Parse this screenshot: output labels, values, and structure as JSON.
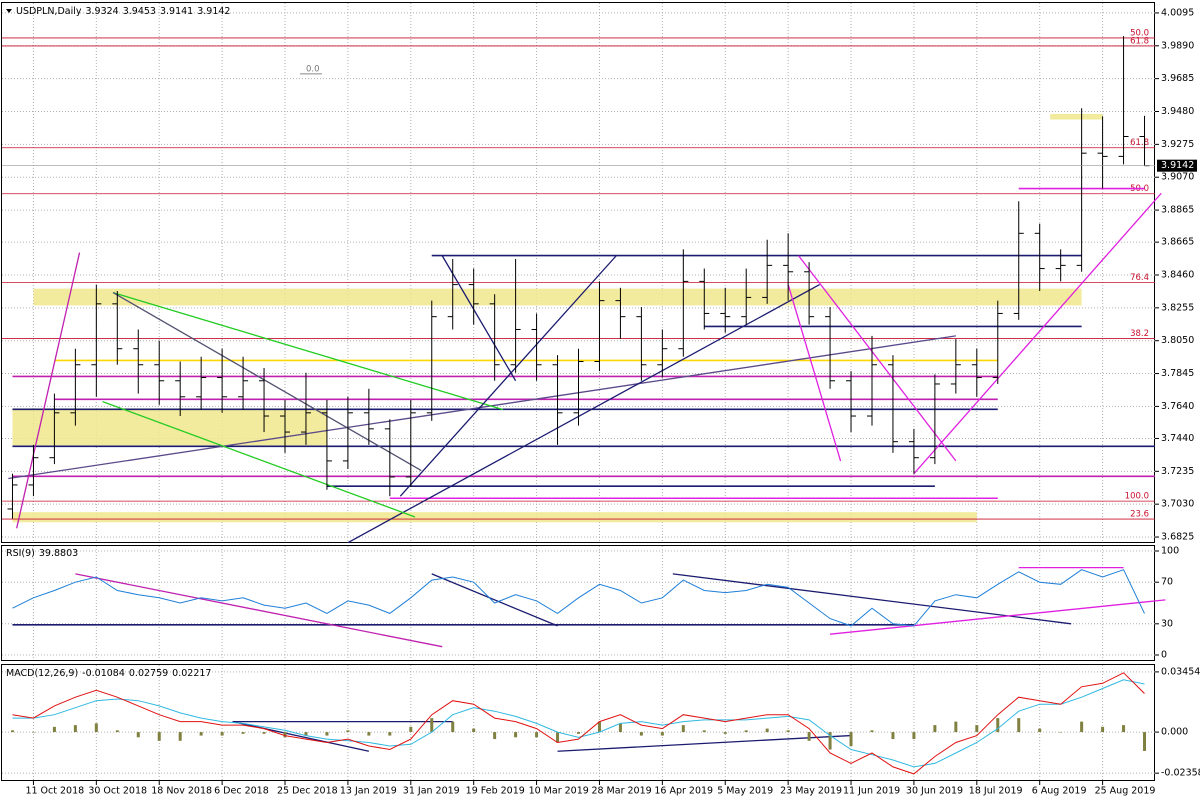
{
  "chart_data": [
    {
      "type": "ohlc",
      "title": "USDPLN,Daily",
      "color": "#000000",
      "grid": true,
      "categories": [
        null,
        "11 Oct 2018",
        null,
        null,
        "30 Oct 2018",
        null,
        null,
        "18 Nov 2018",
        null,
        null,
        "6 Dec 2018",
        null,
        null,
        "25 Dec 2018",
        null,
        null,
        "13 Jan 2019",
        null,
        null,
        "31 Jan 2019",
        null,
        null,
        "19 Feb 2019",
        null,
        null,
        "10 Mar 2019",
        null,
        null,
        "28 Mar 2019",
        null,
        null,
        "16 Apr 2019",
        null,
        null,
        "5 May 2019",
        null,
        null,
        "23 May 2019",
        null,
        null,
        "11 Jun 2019",
        null,
        null,
        "30 Jun 2019",
        null,
        null,
        "18 Jul 2019",
        null,
        null,
        "6 Aug 2019",
        null,
        null,
        "25 Aug 2019",
        null,
        null
      ],
      "open": [
        3.7,
        3.715,
        3.732,
        3.76,
        3.79,
        3.828,
        3.8,
        3.79,
        3.78,
        3.77,
        3.782,
        3.77,
        3.78,
        3.758,
        3.748,
        3.76,
        3.73,
        3.76,
        3.75,
        3.72,
        3.76,
        3.82,
        3.84,
        3.828,
        3.79,
        3.812,
        3.79,
        3.76,
        3.792,
        3.83,
        3.82,
        3.79,
        3.8,
        3.842,
        3.822,
        3.82,
        3.832,
        3.852,
        3.848,
        3.82,
        3.78,
        3.758,
        3.79,
        3.742,
        3.732,
        3.778,
        3.79,
        3.782,
        3.822,
        3.872,
        3.85,
        3.852,
        3.922,
        3.92,
        3.9324
      ],
      "high": [
        3.722,
        3.74,
        3.772,
        3.8,
        3.84,
        3.836,
        3.812,
        3.805,
        3.792,
        3.795,
        3.8,
        3.795,
        3.788,
        3.768,
        3.785,
        3.768,
        3.77,
        3.775,
        3.756,
        3.768,
        3.83,
        3.856,
        3.85,
        3.834,
        3.856,
        3.822,
        3.796,
        3.8,
        3.842,
        3.838,
        3.826,
        3.812,
        3.862,
        3.85,
        3.838,
        3.85,
        3.868,
        3.872,
        3.854,
        3.826,
        3.786,
        3.808,
        3.796,
        3.75,
        3.784,
        3.806,
        3.8,
        3.83,
        3.892,
        3.878,
        3.862,
        3.95,
        3.945,
        3.995,
        3.9453
      ],
      "low": [
        3.694,
        3.708,
        3.728,
        3.752,
        3.77,
        3.79,
        3.772,
        3.765,
        3.758,
        3.762,
        3.76,
        3.762,
        3.748,
        3.735,
        3.74,
        3.712,
        3.725,
        3.74,
        3.708,
        3.714,
        3.755,
        3.812,
        3.815,
        3.78,
        3.785,
        3.78,
        3.74,
        3.752,
        3.786,
        3.806,
        3.78,
        3.782,
        3.795,
        3.812,
        3.81,
        3.815,
        3.828,
        3.83,
        3.815,
        3.775,
        3.748,
        3.752,
        3.735,
        3.722,
        3.728,
        3.772,
        3.77,
        3.778,
        3.818,
        3.836,
        3.842,
        3.848,
        3.9,
        3.915,
        3.9141
      ],
      "close": [
        3.715,
        3.732,
        3.76,
        3.79,
        3.828,
        3.8,
        3.79,
        3.78,
        3.77,
        3.782,
        3.77,
        3.78,
        3.758,
        3.748,
        3.76,
        3.73,
        3.76,
        3.75,
        3.72,
        3.76,
        3.82,
        3.84,
        3.828,
        3.79,
        3.812,
        3.79,
        3.76,
        3.792,
        3.83,
        3.82,
        3.79,
        3.8,
        3.842,
        3.822,
        3.82,
        3.832,
        3.852,
        3.848,
        3.82,
        3.78,
        3.758,
        3.79,
        3.742,
        3.732,
        3.778,
        3.79,
        3.782,
        3.822,
        3.872,
        3.85,
        3.852,
        3.922,
        3.92,
        3.9324,
        3.9142
      ],
      "ylim": [
        3.6794,
        4.0157
      ],
      "yticks": [
        4.0095,
        {
          "value": 3.989,
          "label": "3.9890"
        },
        3.9685,
        {
          "value": 3.948,
          "label": "3.9480"
        },
        3.9275,
        {
          "value": 3.907,
          "label": "3.9070"
        },
        3.8865,
        3.8665,
        {
          "value": 3.846,
          "label": "3.8460"
        },
        3.8255,
        {
          "value": 3.805,
          "label": "3.8050"
        },
        3.7845,
        {
          "value": 3.764,
          "label": "3.7640"
        },
        {
          "value": 3.744,
          "label": "3.7440"
        },
        3.7235,
        {
          "value": 3.703,
          "label": "3.7030"
        },
        3.6825
      ],
      "zones": [
        {
          "x": [
            0,
            15
          ],
          "y": [
            3.7397,
            3.7628
          ],
          "color": "#f0e68c"
        },
        {
          "x": [
            1,
            51
          ],
          "y": [
            3.827,
            3.8375
          ],
          "color": "#f0e68c"
        },
        {
          "x": [
            0,
            46
          ],
          "y": [
            3.6917,
            3.698
          ],
          "color": "#f0e68c"
        },
        {
          "x": [
            49.5,
            52
          ],
          "y": [
            3.943,
            3.9465
          ],
          "color": "#f0e68c"
        }
      ],
      "levels": [
        {
          "x": [
            20,
            51
          ],
          "y": 3.8581,
          "color": "#1b1b70"
        },
        {
          "x": [
            33,
            51
          ],
          "y": 3.8139,
          "color": "#1b1b70"
        },
        {
          "x": [
            2,
            47
          ],
          "y": 3.7927,
          "color": "#ffd700"
        },
        {
          "x": [
            0,
            47
          ],
          "y": 3.7827,
          "color": "#c020b0"
        },
        {
          "x": [
            2,
            47
          ],
          "y": 3.7684,
          "color": "#c020b0"
        },
        {
          "x": [
            0,
            47
          ],
          "y": 3.7622,
          "color": "#1b1b70"
        },
        {
          "x": [
            0,
            55
          ],
          "y": 3.7391,
          "color": "#1b1b70"
        },
        {
          "x": [
            0,
            55
          ],
          "y": 3.7204,
          "color": "#c020b0"
        },
        {
          "x": [
            15,
            44
          ],
          "y": 3.7142,
          "color": "#1b1b70"
        },
        {
          "x": [
            18,
            47
          ],
          "y": 3.7067,
          "color": "#e020e0"
        },
        {
          "x": [
            48,
            54
          ],
          "y": 3.8999,
          "color": "#e020e0"
        }
      ],
      "trendlines": [
        {
          "x": [
            -0.2,
            45
          ],
          "y": [
            3.719,
            3.808
          ],
          "color": "#5a4a8a"
        },
        {
          "x": [
            16,
            38.5
          ],
          "y": [
            3.679,
            3.84
          ],
          "color": "#1b1b70"
        },
        {
          "x": [
            4.8,
            23.4
          ],
          "y": [
            3.835,
            3.762
          ],
          "color": "#22cc22"
        },
        {
          "x": [
            4.3,
            19.2
          ],
          "y": [
            3.767,
            3.695
          ],
          "color": "#22cc22"
        },
        {
          "x": [
            4.8,
            19.5
          ],
          "y": [
            3.835,
            3.724
          ],
          "color": "#505070"
        },
        {
          "x": [
            0.2,
            3.2
          ],
          "y": [
            3.688,
            3.86
          ],
          "color": "#c020b0"
        },
        {
          "x": [
            18.5,
            28.8
          ],
          "y": [
            3.708,
            3.858
          ],
          "color": "#1b1b70"
        },
        {
          "x": [
            20.5,
            24
          ],
          "y": [
            3.858,
            3.78
          ],
          "color": "#1b1b70"
        },
        {
          "x": [
            37.5,
            45
          ],
          "y": [
            3.858,
            3.73
          ],
          "color": "#e020e0"
        },
        {
          "x": [
            37,
            39.5
          ],
          "y": [
            3.84,
            3.73
          ],
          "color": "#e020e0"
        },
        {
          "x": [
            43,
            54.8
          ],
          "y": [
            3.722,
            3.897
          ],
          "color": "#e020e0"
        }
      ],
      "fib_levels": [
        {
          "text": "50.0",
          "y": 3.9939
        },
        {
          "text": "61.8",
          "y": 3.9889
        },
        {
          "text": "61.8",
          "y": 3.9254
        },
        {
          "text": "50.0",
          "y": 3.8967
        },
        {
          "text": "76.4",
          "y": 3.8413
        },
        {
          "text": "38.2",
          "y": 3.8064
        },
        {
          "text": "100.0",
          "y": 3.7049
        },
        {
          "text": "23.6",
          "y": 3.6937
        }
      ],
      "annotations": [
        {
          "text": "0.0",
          "x": 14,
          "y": 3.9715
        }
      ]
    },
    {
      "type": "line",
      "title": "RSI(9)",
      "grid": true,
      "series": [
        {
          "color": "#1e7fd8",
          "values": [
            45,
            55,
            62,
            70,
            75,
            62,
            58,
            55,
            50,
            55,
            52,
            55,
            48,
            45,
            50,
            40,
            52,
            48,
            40,
            55,
            72,
            75,
            70,
            50,
            58,
            52,
            40,
            55,
            68,
            62,
            50,
            55,
            72,
            62,
            60,
            62,
            68,
            65,
            50,
            35,
            28,
            45,
            30,
            28,
            52,
            58,
            55,
            68,
            80,
            70,
            68,
            82,
            75,
            82,
            39.8803
          ]
        }
      ],
      "ylim": [
        -4.8,
        104.8
      ],
      "yticks": [
        100,
        70,
        30,
        0
      ],
      "levels": [
        {
          "x": [
            0,
            43
          ],
          "y": 29,
          "color": "#1b1b70"
        }
      ],
      "trendlines": [
        {
          "x": [
            3,
            20.5
          ],
          "y": [
            78,
            8
          ],
          "color": "#c020b0"
        },
        {
          "x": [
            20,
            26
          ],
          "y": [
            78,
            28
          ],
          "color": "#1b1b70"
        },
        {
          "x": [
            31.5,
            50.5
          ],
          "y": [
            78,
            30
          ],
          "color": "#1b1b70"
        },
        {
          "x": [
            39,
            55
          ],
          "y": [
            20,
            53
          ],
          "color": "#e020e0"
        },
        {
          "x": [
            48,
            53
          ],
          "y": [
            84,
            84
          ],
          "color": "#e020e0"
        }
      ]
    },
    {
      "type": "macd",
      "title": "MACD(12,26,9)",
      "grid": true,
      "color": "#808040",
      "histogram": [
        0.001,
        0.0,
        0.003,
        0.004,
        0.005,
        0.001,
        -0.003,
        -0.005,
        -0.005,
        -0.002,
        -0.002,
        -0.001,
        -0.001,
        -0.003,
        -0.002,
        -0.002,
        0.001,
        -0.002,
        -0.002,
        0.003,
        0.008,
        0.006,
        0.002,
        -0.004,
        -0.003,
        -0.003,
        -0.006,
        -0.001,
        0.006,
        0.005,
        -0.002,
        -0.002,
        0.004,
        0.001,
        -0.001,
        0.001,
        0.002,
        0.001,
        -0.005,
        -0.01,
        -0.008,
        0.001,
        -0.004,
        -0.004,
        0.004,
        0.006,
        0.004,
        0.008,
        0.008,
        0.002,
        0.0,
        0.006,
        0.003,
        0.004,
        -0.01084
      ],
      "series": [
        {
          "color": "#30b8e0",
          "values": [
            0.008,
            0.008,
            0.01,
            0.014,
            0.018,
            0.019,
            0.018,
            0.015,
            0.011,
            0.008,
            0.006,
            0.005,
            0.003,
            0.001,
            -0.002,
            -0.004,
            -0.005,
            -0.006,
            -0.008,
            -0.007,
            0.0,
            0.01,
            0.014,
            0.012,
            0.009,
            0.005,
            0.0,
            -0.003,
            0.0,
            0.005,
            0.006,
            0.004,
            0.006,
            0.007,
            0.007,
            0.007,
            0.008,
            0.009,
            0.007,
            -0.002,
            -0.01,
            -0.013,
            -0.016,
            -0.02,
            -0.018,
            -0.012,
            -0.006,
            0.002,
            0.012,
            0.016,
            0.016,
            0.02,
            0.025,
            0.03,
            0.02759
          ]
        },
        {
          "color": "#e01010",
          "values": [
            0.01,
            0.008,
            0.015,
            0.02,
            0.024,
            0.02,
            0.015,
            0.01,
            0.006,
            0.006,
            0.004,
            0.004,
            0.002,
            -0.002,
            -0.004,
            -0.006,
            -0.004,
            -0.008,
            -0.01,
            -0.004,
            0.01,
            0.018,
            0.016,
            0.008,
            0.006,
            0.002,
            -0.006,
            -0.004,
            0.006,
            0.01,
            0.004,
            0.002,
            0.01,
            0.008,
            0.006,
            0.008,
            0.01,
            0.01,
            0.002,
            -0.012,
            -0.018,
            -0.012,
            -0.02,
            -0.024,
            -0.014,
            -0.006,
            -0.002,
            0.01,
            0.02,
            0.018,
            0.016,
            0.026,
            0.028,
            0.034,
            0.02217
          ]
        }
      ],
      "ylim": [
        -0.0275,
        0.0385
      ],
      "yticks": [
        0.03454,
        {
          "value": 0,
          "label": "0.000"
        },
        -0.02358
      ],
      "trendlines": [
        {
          "x": [
            10.5,
            17
          ],
          "y": [
            0.006,
            -0.011
          ],
          "color": "#1b1b70"
        },
        {
          "x": [
            10.5,
            21
          ],
          "y": [
            0.006,
            0.006
          ],
          "color": "#1b1b70"
        },
        {
          "x": [
            26,
            40
          ],
          "y": [
            -0.011,
            -0.002
          ],
          "color": "#1b1b70"
        }
      ]
    }
  ]
}
